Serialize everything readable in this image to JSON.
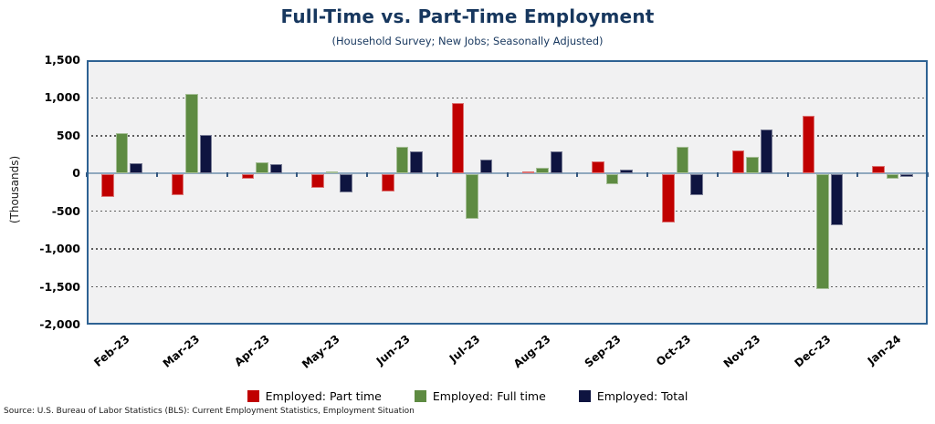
{
  "title": "Full-Time vs. Part-Time Employment",
  "subtitle": "(Household Survey; New Jobs; Seasonally Adjusted)",
  "source_note": "Source: U.S. Bureau of Labor Statistics (BLS): Current Employment Statistics, Employment Situation",
  "colors": {
    "title_text": "#17375E",
    "subtitle_text": "#17375E",
    "plot_background": "#F1F1F2",
    "plot_border": "#2E6293",
    "gridline": "#5E5E5E",
    "zero_axis": "#8FA8BE",
    "axis_tick": "#33567E",
    "part_time": "#C00000",
    "full_time": "#5E8B42",
    "total": "#0E1440"
  },
  "chart_data": {
    "type": "bar",
    "title": "Full-Time vs. Part-Time Employment",
    "subtitle": "(Household Survey; New Jobs; Seasonally Adjusted)",
    "xlabel": "",
    "ylabel": "(Thousands)",
    "units": "thousands of jobs",
    "ylim": [
      -2000,
      1500
    ],
    "ytick_step": 500,
    "ytick_labels": [
      "1,500",
      "1,000",
      "500",
      "0",
      "-500",
      "-1,000",
      "-1,500",
      "-2,000"
    ],
    "grid": "horizontal-dotted",
    "legend_position": "bottom",
    "categories": [
      "Feb-23",
      "Mar-23",
      "Apr-23",
      "May-23",
      "Jun-23",
      "Jul-23",
      "Aug-23",
      "Sep-23",
      "Oct-23",
      "Nov-23",
      "Dec-23",
      "Jan-24"
    ],
    "series": [
      {
        "name": "Employed: Part time",
        "color": "#C00000",
        "values": [
          -300,
          -270,
          -60,
          -180,
          -230,
          930,
          30,
          160,
          -640,
          310,
          760,
          100
        ]
      },
      {
        "name": "Employed: Full time",
        "color": "#5E8B42",
        "values": [
          530,
          1050,
          150,
          20,
          350,
          -590,
          70,
          -130,
          350,
          220,
          -1520,
          -60
        ]
      },
      {
        "name": "Employed: Total",
        "color": "#0E1440",
        "values": [
          140,
          510,
          120,
          -240,
          290,
          190,
          290,
          50,
          -270,
          580,
          -670,
          -30
        ]
      }
    ]
  }
}
